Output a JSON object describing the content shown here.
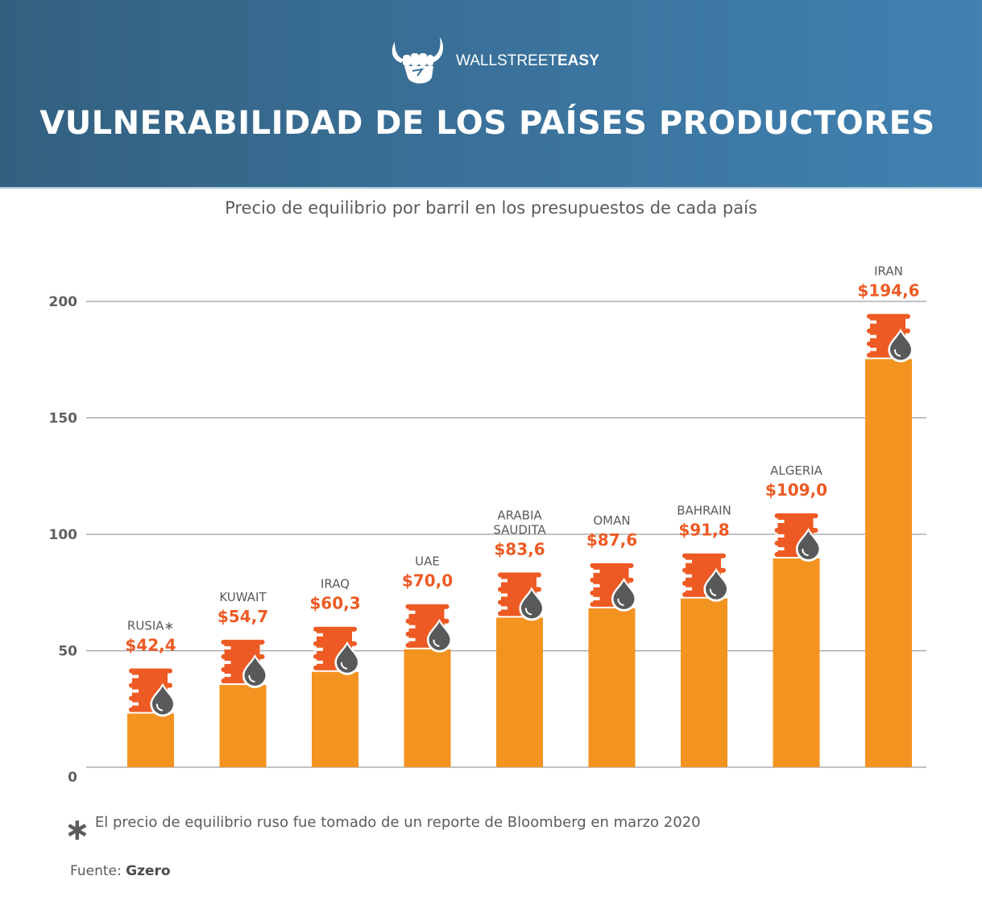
{
  "header": {
    "logo_light": "WALLSTREET",
    "logo_bold": "EASY",
    "title": "VULNERABILIDAD DE LOS PAÍSES PRODUCTORES"
  },
  "colors": {
    "bar": "#f39320",
    "barrel": "#ee5a24",
    "drop": "#58595b",
    "value_text": "#ee5a24",
    "grid": "#9d9d9d"
  },
  "chart_data": {
    "type": "bar",
    "title": "VULNERABILIDAD DE LOS PAÍSES PRODUCTORES",
    "subtitle": "Precio de equilibrio por barril en los presupuestos de cada país",
    "xlabel": "",
    "ylabel": "",
    "ylim": [
      0,
      200
    ],
    "yticks": [
      0,
      50,
      100,
      150,
      200
    ],
    "grid": true,
    "categories": [
      "RUSIA*",
      "KUWAIT",
      "IRAQ",
      "UAE",
      "ARABIA SAUDITA",
      "OMAN",
      "BAHRAIN",
      "ALGERIA",
      "IRAN"
    ],
    "category_lines": [
      [
        "RUSIA∗"
      ],
      [
        "KUWAIT"
      ],
      [
        "IRAQ"
      ],
      [
        "UAE"
      ],
      [
        "ARABIA",
        "SAUDITA"
      ],
      [
        "OMAN"
      ],
      [
        "BAHRAIN"
      ],
      [
        "ALGERIA"
      ],
      [
        "IRAN"
      ]
    ],
    "values": [
      42.4,
      54.7,
      60.3,
      70.0,
      83.6,
      87.6,
      91.8,
      109.0,
      194.6
    ],
    "value_labels": [
      "$42,4",
      "$54,7",
      "$60,3",
      "$70,0",
      "$83,6",
      "$87,6",
      "$91,8",
      "$109,0",
      "$194,6"
    ]
  },
  "footer": {
    "footnote_marker": "∗",
    "footnote": "El precio de equilibrio ruso fue tomado de un reporte de Bloomberg en marzo 2020",
    "source_label": "Fuente:",
    "source_name": "Gzero"
  }
}
